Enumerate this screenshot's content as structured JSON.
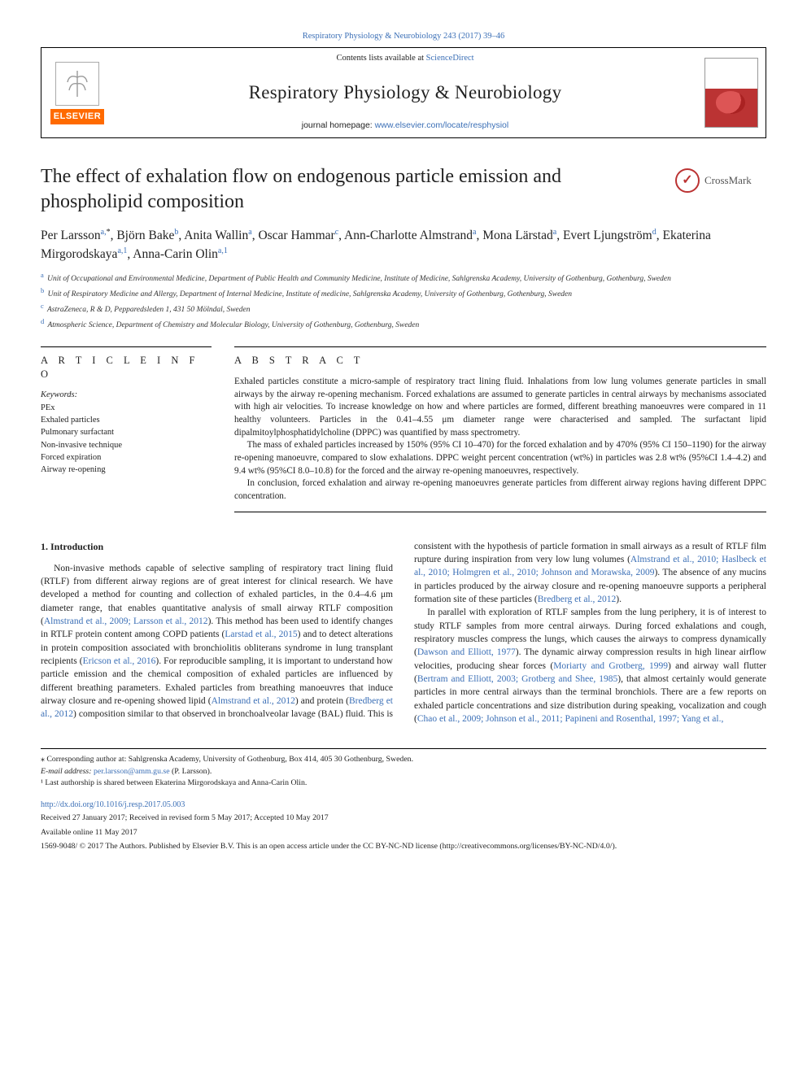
{
  "journal_ref": "Respiratory Physiology & Neurobiology 243 (2017) 39–46",
  "header": {
    "contents_prefix": "Contents lists available at ",
    "contents_link": "ScienceDirect",
    "journal_name": "Respiratory Physiology & Neurobiology",
    "homepage_prefix": "journal homepage: ",
    "homepage_url": "www.elsevier.com/locate/resphysiol",
    "elsevier_label": "ELSEVIER"
  },
  "crossmark_label": "CrossMark",
  "article_title": "The effect of exhalation flow on endogenous particle emission and phospholipid composition",
  "authors_html": "Per Larsson<sup>a,</sup><sup class=\"star\">*</sup>, Björn Bake<sup>b</sup>, Anita Wallin<sup>a</sup>, Oscar Hammar<sup>c</sup>, Ann-Charlotte Almstrand<sup>a</sup>, Mona Lärstad<sup>a</sup>, Evert Ljungström<sup>d</sup>, Ekaterina Mirgorodskaya<sup>a,1</sup>, Anna-Carin Olin<sup>a,1</sup>",
  "affiliations": [
    {
      "sup": "a",
      "text": "Unit of Occupational and Environmental Medicine, Department of Public Health and Community Medicine, Institute of Medicine, Sahlgrenska Academy, University of Gothenburg, Gothenburg, Sweden"
    },
    {
      "sup": "b",
      "text": "Unit of Respiratory Medicine and Allergy, Department of Internal Medicine, Institute of medicine, Sahlgrenska Academy, University of Gothenburg, Gothenburg, Sweden"
    },
    {
      "sup": "c",
      "text": "AstraZeneca, R & D, Pepparedsleden 1, 431 50 Mölndal, Sweden"
    },
    {
      "sup": "d",
      "text": "Atmospheric Science, Department of Chemistry and Molecular Biology, University of Gothenburg, Gothenburg, Sweden"
    }
  ],
  "article_info": {
    "heading": "A R T I C L E  I N F O",
    "keywords_label": "Keywords:",
    "keywords": [
      "PEx",
      "Exhaled particles",
      "Pulmonary surfactant",
      "Non-invasive technique",
      "Forced expiration",
      "Airway re-opening"
    ]
  },
  "abstract": {
    "heading": "A B S T R A C T",
    "paragraphs": [
      "Exhaled particles constitute a micro-sample of respiratory tract lining fluid. Inhalations from low lung volumes generate particles in small airways by the airway re-opening mechanism. Forced exhalations are assumed to generate particles in central airways by mechanisms associated with high air velocities. To increase knowledge on how and where particles are formed, different breathing manoeuvres were compared in 11 healthy volunteers. Particles in the 0.41–4.55 μm diameter range were characterised and sampled. The surfactant lipid dipalmitoylphosphatidylcholine (DPPC) was quantified by mass spectrometry.",
      "The mass of exhaled particles increased by 150% (95% CI 10–470) for the forced exhalation and by 470% (95% CI 150–1190) for the airway re-opening manoeuvre, compared to slow exhalations. DPPC weight percent concentration (wt%) in particles was 2.8 wt% (95%CI 1.4–4.2) and 9.4 wt% (95%CI 8.0–10.8) for the forced and the airway re-opening manoeuvres, respectively.",
      "In conclusion, forced exhalation and airway re-opening manoeuvres generate particles from different airway regions having different DPPC concentration."
    ]
  },
  "body": {
    "section_number": "1.",
    "section_title": "Introduction",
    "paragraphs": [
      "Non-invasive methods capable of selective sampling of respiratory tract lining fluid (RTLF) from different airway regions are of great interest for clinical research. We have developed a method for counting and collection of exhaled particles, in the 0.4–4.6 μm diameter range, that enables quantitative analysis of small airway RTLF composition (<a class=\"cite\" href=\"#\">Almstrand et al., 2009; Larsson et al., 2012</a>). This method has been used to identify changes in RTLF protein content among COPD patients (<a class=\"cite\" href=\"#\">Larstad et al., 2015</a>) and to detect alterations in protein composition associated with bronchiolitis obliterans syndrome in lung transplant recipients (<a class=\"cite\" href=\"#\">Ericson et al., 2016</a>). For reproducible sampling, it is important to understand how particle emission and the chemical composition of exhaled particles are influenced by different breathing parameters. Exhaled particles from breathing manoeuvres that induce airway closure and re-opening showed lipid (<a class=\"cite\" href=\"#\">Almstrand et al., 2012</a>) and protein (<a class=\"cite\" href=\"#\">Bredberg et al., 2012</a>) composition similar to that observed in bronchoalveolar lavage (BAL) fluid. This is consistent with the hypothesis of particle formation in small airways as a result of RTLF film rupture during inspiration from very low lung volumes (<a class=\"cite\" href=\"#\">Almstrand et al., 2010; Haslbeck et al., 2010; Holmgren et al., 2010; Johnson and Morawska, 2009</a>). The absence of any mucins in particles produced by the airway closure and re-opening manoeuvre supports a peripheral formation site of these particles (<a class=\"cite\" href=\"#\">Bredberg et al., 2012</a>).",
      "In parallel with exploration of RTLF samples from the lung periphery, it is of interest to study RTLF samples from more central airways. During forced exhalations and cough, respiratory muscles compress the lungs, which causes the airways to compress dynamically (<a class=\"cite\" href=\"#\">Dawson and Elliott, 1977</a>). The dynamic airway compression results in high linear airflow velocities, producing shear forces (<a class=\"cite\" href=\"#\">Moriarty and Grotberg, 1999</a>) and airway wall flutter (<a class=\"cite\" href=\"#\">Bertram and Elliott, 2003; Grotberg and Shee, 1985</a>), that almost certainly would generate particles in more central airways than the terminal bronchiols. There are a few reports on exhaled particle concentrations and size distribution during speaking, vocalization and cough (<a class=\"cite\" href=\"#\">Chao et al., 2009; Johnson et al., 2011; Papineni and Rosenthal, 1997; Yang et al.,</a>"
    ]
  },
  "footnotes": {
    "corresponding": "⁎ Corresponding author at: Sahlgrenska Academy, University of Gothenburg, Box 414, 405 30 Gothenburg, Sweden.",
    "email_label": "E-mail address: ",
    "email": "per.larsson@amm.gu.se",
    "email_suffix": " (P. Larsson).",
    "shared": "¹ Last authorship is shared between Ekaterina Mirgorodskaya and Anna-Carin Olin."
  },
  "doi": "http://dx.doi.org/10.1016/j.resp.2017.05.003",
  "history": "Received 27 January 2017; Received in revised form 5 May 2017; Accepted 10 May 2017",
  "available": "Available online 11 May 2017",
  "copyright": "1569-9048/ © 2017 The Authors. Published by Elsevier B.V. This is an open access article under the CC BY-NC-ND license (http://creativecommons.org/licenses/BY-NC-ND/4.0/).",
  "colors": {
    "link": "#3b6fb6",
    "elsevier_orange": "#ff6a00",
    "text": "#222222",
    "rule": "#000000"
  }
}
